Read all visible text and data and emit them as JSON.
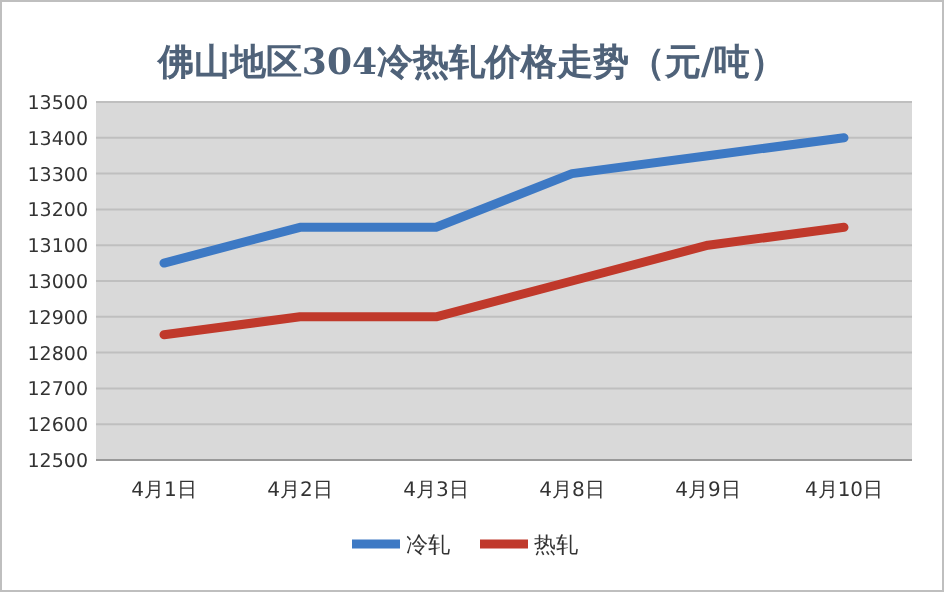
{
  "chart_data": {
    "type": "line",
    "title": "佛山地区304冷热轧价格走势（元/吨）",
    "categories": [
      "4月1日",
      "4月2日",
      "4月3日",
      "4月8日",
      "4月9日",
      "4月10日"
    ],
    "series": [
      {
        "name": "冷轧",
        "color": "#3d79c4",
        "values": [
          13050,
          13150,
          13150,
          13300,
          13350,
          13400
        ]
      },
      {
        "name": "热轧",
        "color": "#c0392b",
        "values": [
          12850,
          12900,
          12900,
          13000,
          13100,
          13150
        ]
      }
    ],
    "ylim": [
      12500,
      13500
    ],
    "yticks": [
      12500,
      12600,
      12700,
      12800,
      12900,
      13000,
      13100,
      13200,
      13300,
      13400,
      13500
    ],
    "grid": "y",
    "legend": "bottom",
    "marker": "none",
    "line_style": "solid"
  }
}
